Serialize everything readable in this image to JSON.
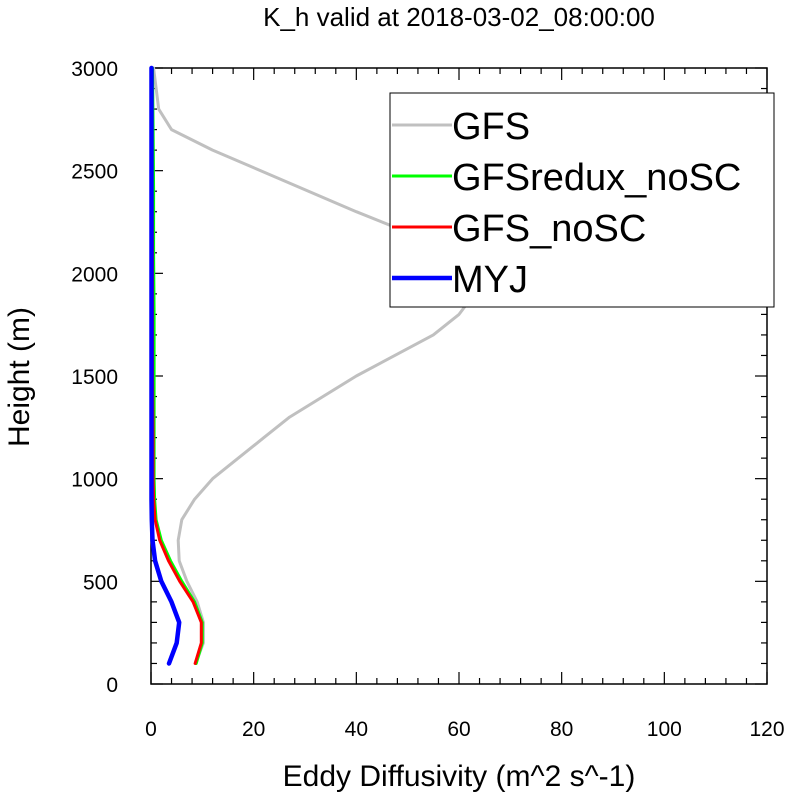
{
  "chart_data": {
    "type": "line",
    "title": "K_h valid at 2018-03-02_08:00:00",
    "xlabel": "Eddy Diffusivity (m^2 s^-1)",
    "ylabel": "Height (m)",
    "xlim": [
      0,
      120
    ],
    "ylim": [
      0,
      3000
    ],
    "xticks": [
      "0",
      "20",
      "40",
      "60",
      "80",
      "100",
      "120"
    ],
    "yticks": [
      "0",
      "500",
      "1000",
      "1500",
      "2000",
      "2500",
      "3000"
    ],
    "grid": false,
    "legend_position": "top-right",
    "series": [
      {
        "name": "GFS",
        "color": "#c0c0c0",
        "x": [
          8.7,
          10.2,
          10.2,
          9.0,
          7.0,
          5.5,
          5.3,
          6.0,
          8.5,
          12.0,
          22.0,
          27.0,
          40.0,
          55.0,
          60.0,
          63.0,
          62.0,
          58.0,
          50.0,
          40.0,
          12.0,
          4.0,
          1.5,
          0.5
        ],
        "y": [
          100,
          200,
          300,
          400,
          500,
          600,
          700,
          800,
          900,
          1000,
          1200,
          1300,
          1500,
          1700,
          1800,
          1900,
          2000,
          2100,
          2200,
          2300,
          2600,
          2700,
          2800,
          3000
        ]
      },
      {
        "name": "GFSredux_noSC",
        "color": "#00ff00",
        "x": [
          8.8,
          10.0,
          10.0,
          8.5,
          6.0,
          3.8,
          2.0,
          1.0,
          0.7,
          0.6,
          0.6,
          0.6,
          0.6,
          0.5,
          0.5,
          0.4,
          0.3
        ],
        "y": [
          100,
          200,
          300,
          400,
          500,
          600,
          700,
          800,
          900,
          1000,
          1200,
          1500,
          1800,
          2100,
          2400,
          2700,
          3000
        ]
      },
      {
        "name": "GFS_noSC",
        "color": "#ff0000",
        "x": [
          8.6,
          9.8,
          9.8,
          8.2,
          5.6,
          3.4,
          1.7,
          0.8,
          0.5,
          0.4,
          0.4,
          0.3,
          0.3,
          0.3,
          0.2,
          0.2,
          0.2
        ],
        "y": [
          100,
          200,
          300,
          400,
          500,
          600,
          700,
          800,
          900,
          1000,
          1200,
          1500,
          1800,
          2100,
          2400,
          2700,
          3000
        ]
      },
      {
        "name": "MYJ",
        "color": "#0000ff",
        "x": [
          3.5,
          5.0,
          5.5,
          4.0,
          2.0,
          0.8,
          0.3,
          0.15,
          0.1,
          0.1,
          0.1,
          0.1,
          0.1,
          0.1,
          0.1,
          0.1,
          0.1
        ],
        "y": [
          100,
          200,
          300,
          400,
          500,
          600,
          700,
          800,
          900,
          1000,
          1200,
          1500,
          1800,
          2100,
          2400,
          2700,
          3000
        ]
      }
    ]
  }
}
